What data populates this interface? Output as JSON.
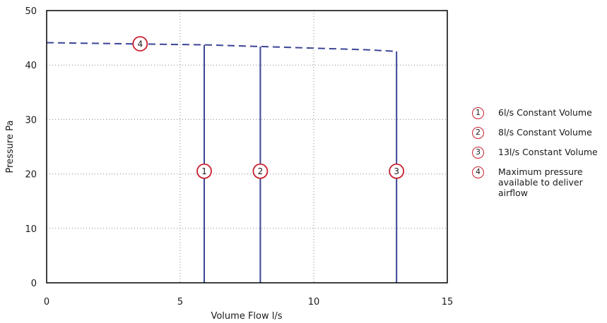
{
  "chart_data": {
    "type": "line",
    "xlabel": "Volume Flow l/s",
    "ylabel": "Pressure Pa",
    "xlim": [
      0,
      15
    ],
    "ylim": [
      0,
      50
    ],
    "x_ticks": [
      "0",
      "5",
      "10",
      "15"
    ],
    "y_ticks": [
      "0",
      "10",
      "20",
      "30",
      "40",
      "50"
    ],
    "grid": true,
    "legend_position": "right",
    "colors": {
      "line": "#3b4496",
      "marker": "#c8202f",
      "grid": "#888888",
      "frame": "#000000"
    },
    "series": [
      {
        "marker": "4",
        "style": "dashed",
        "x": [
          0,
          3,
          6,
          8,
          10,
          12,
          13.1
        ],
        "y": [
          44.1,
          43.9,
          43.7,
          43.4,
          43.1,
          42.8,
          42.5
        ]
      },
      {
        "marker": "1",
        "style": "solid",
        "x": [
          5.9,
          5.9
        ],
        "y": [
          0,
          43.7
        ]
      },
      {
        "marker": "2",
        "style": "solid",
        "x": [
          8.0,
          8.0
        ],
        "y": [
          0,
          43.4
        ]
      },
      {
        "marker": "3",
        "style": "solid",
        "x": [
          13.1,
          13.1
        ],
        "y": [
          0,
          42.5
        ]
      }
    ],
    "markers": [
      {
        "label": "1",
        "x": 5.9,
        "y": 20.5
      },
      {
        "label": "2",
        "x": 8.0,
        "y": 20.5
      },
      {
        "label": "3",
        "x": 13.1,
        "y": 20.5
      },
      {
        "label": "4",
        "x": 3.5,
        "y": 43.9
      }
    ],
    "legend": [
      {
        "badge": "1",
        "text": "6l/s Constant Volume"
      },
      {
        "badge": "2",
        "text": "8l/s Constant Volume"
      },
      {
        "badge": "3",
        "text": "13l/s Constant Volume"
      },
      {
        "badge": "4",
        "text": "Maximum pressure available to deliver airflow"
      }
    ]
  }
}
